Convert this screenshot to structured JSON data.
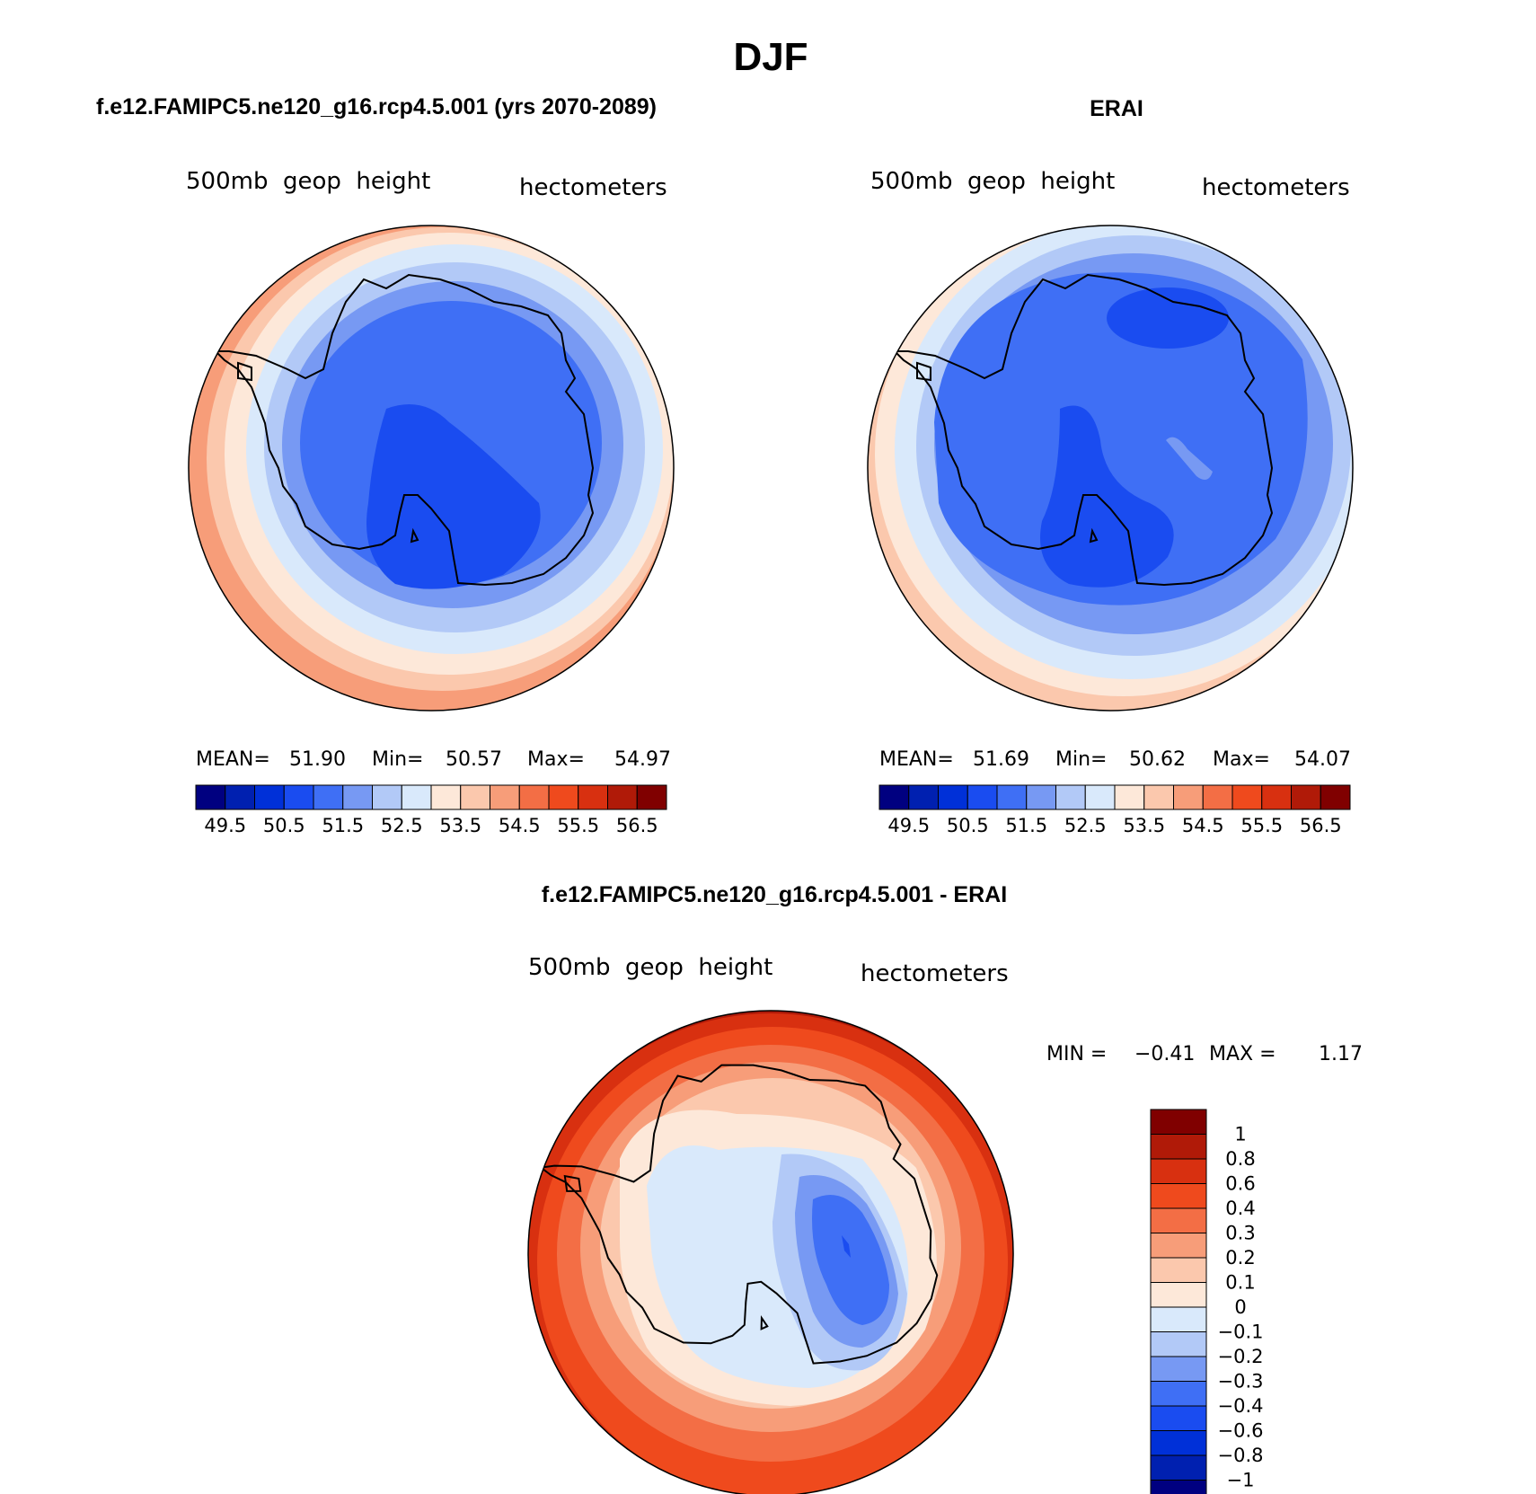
{
  "page_title": "DJF",
  "panels": [
    {
      "id": "model",
      "title": "f.e12.FAMIPC5.ne120_g16.rcp4.5.001 (yrs 2070-2089)",
      "variable": "500mb  geop  height",
      "units": "hectometers",
      "stats": {
        "mean_label": "MEAN=",
        "mean": "51.90",
        "min_label": "Min=",
        "min": "50.57",
        "max_label": "Max=",
        "max": "54.97"
      }
    },
    {
      "id": "obs",
      "title": "ERAI",
      "variable": "500mb  geop  height",
      "units": "hectometers",
      "stats": {
        "mean_label": "MEAN=",
        "mean": "51.69",
        "min_label": "Min=",
        "min": "50.62",
        "max_label": "Max=",
        "max": "54.07"
      }
    },
    {
      "id": "diff",
      "title": "f.e12.FAMIPC5.ne120_g16.rcp4.5.001 - ERAI",
      "variable": "500mb  geop  height",
      "units": "hectometers",
      "stats": {
        "min_label": "MIN =",
        "min": "−0.41",
        "max_label": "MAX =",
        "max": "1.17"
      }
    }
  ],
  "colorbar_main": {
    "colors": [
      "#000080",
      "#0020b0",
      "#0030d8",
      "#1a4cf0",
      "#3f6ff5",
      "#7799f3",
      "#b2c9f7",
      "#d9e9fb",
      "#fde8d9",
      "#fbc8ad",
      "#f79d79",
      "#f36e45",
      "#ef4a1d",
      "#d83010",
      "#b01a08",
      "#800000"
    ],
    "labels": [
      "49.5",
      "50.5",
      "51.5",
      "52.5",
      "53.5",
      "54.5",
      "55.5",
      "56.5"
    ]
  },
  "colorbar_diff": {
    "colors": [
      "#000080",
      "#0020b0",
      "#0030d8",
      "#1a4cf0",
      "#3f6ff5",
      "#7799f3",
      "#b2c9f7",
      "#d9e9fb",
      "#fde8d9",
      "#fbc8ad",
      "#f79d79",
      "#f36e45",
      "#ef4a1d",
      "#d83010",
      "#b01a08",
      "#800000"
    ],
    "labels": [
      "−1",
      "−0.8",
      "−0.6",
      "−0.4",
      "−0.3",
      "−0.2",
      "−0.1",
      "0",
      "0.1",
      "0.2",
      "0.3",
      "0.4",
      "0.6",
      "0.8",
      "1"
    ]
  }
}
